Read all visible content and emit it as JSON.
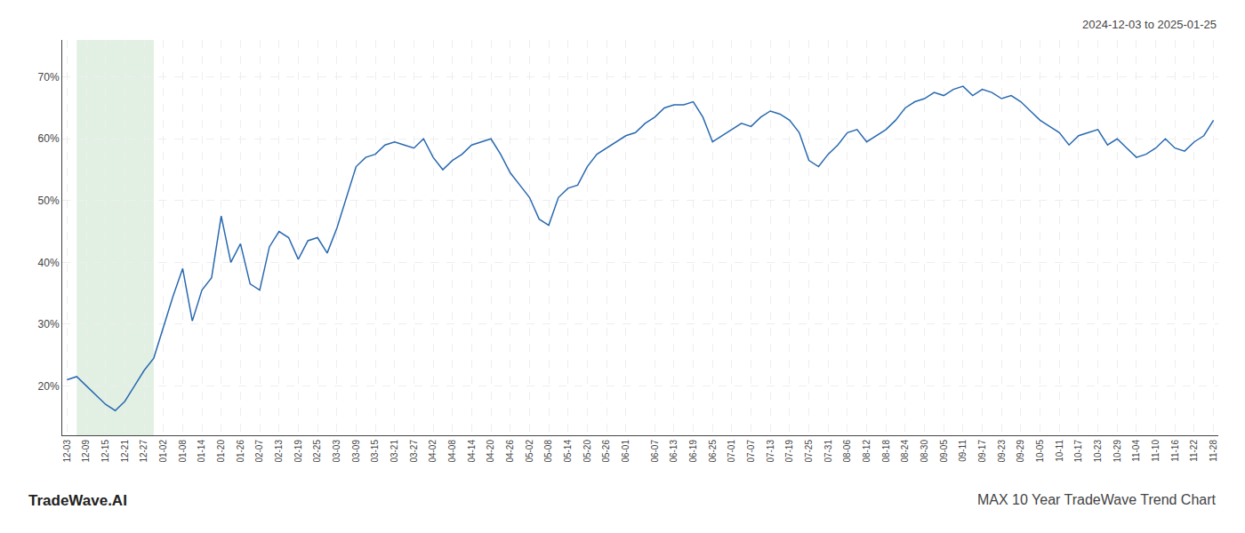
{
  "chart_data": {
    "type": "line",
    "annotations": [
      "2024-12-03 to 2025-01-25",
      "TradeWave.AI",
      "MAX 10 Year TradeWave Trend Chart"
    ],
    "categories": [
      "12-03",
      null,
      "12-09",
      null,
      "12-15",
      null,
      "12-21",
      null,
      "12-27",
      null,
      "01-02",
      null,
      "01-08",
      null,
      "01-14",
      null,
      "01-20",
      null,
      "01-26",
      null,
      "02-07",
      null,
      "02-13",
      null,
      "02-19",
      null,
      "02-25",
      null,
      "03-03",
      null,
      "03-09",
      null,
      "03-15",
      null,
      "03-21",
      null,
      "03-27",
      null,
      "04-02",
      null,
      "04-08",
      null,
      "04-14",
      null,
      "04-20",
      null,
      "04-26",
      null,
      "05-02",
      null,
      "05-08",
      null,
      "05-14",
      null,
      "05-20",
      null,
      "05-26",
      null,
      "06-01",
      null,
      null,
      "06-07",
      null,
      "06-13",
      null,
      "06-19",
      null,
      "06-25",
      null,
      "07-01",
      null,
      "07-07",
      null,
      "07-13",
      null,
      "07-19",
      null,
      "07-25",
      null,
      "07-31",
      null,
      "08-06",
      null,
      "08-12",
      null,
      "08-18",
      null,
      "08-24",
      null,
      "08-30",
      null,
      "09-05",
      null,
      "09-11",
      null,
      "09-17",
      null,
      "09-23",
      null,
      "09-29",
      null,
      "10-05",
      null,
      "10-11",
      null,
      "10-17",
      null,
      "10-23",
      null,
      "10-29",
      null,
      "11-04",
      null,
      "11-10",
      null,
      "11-16",
      null,
      "11-22",
      null,
      "11-28"
    ],
    "values": [
      21.0,
      21.5,
      20.0,
      18.5,
      17.0,
      16.0,
      17.5,
      20.0,
      22.5,
      24.5,
      29.5,
      34.5,
      39.0,
      30.5,
      35.5,
      37.5,
      47.5,
      40.0,
      43.0,
      36.5,
      35.5,
      42.5,
      45.0,
      44.0,
      40.5,
      43.5,
      44.0,
      41.5,
      45.5,
      50.5,
      55.5,
      57.0,
      57.5,
      59.0,
      59.5,
      59.0,
      58.5,
      60.0,
      57.0,
      55.0,
      56.5,
      57.5,
      59.0,
      59.5,
      60.0,
      57.5,
      54.5,
      52.5,
      50.5,
      47.0,
      46.0,
      50.5,
      52.0,
      52.5,
      55.5,
      57.5,
      58.5,
      59.5,
      60.5,
      61.0,
      62.5,
      63.5,
      65.0,
      65.5,
      65.5,
      66.0,
      63.5,
      59.5,
      60.5,
      61.5,
      62.5,
      62.0,
      63.5,
      64.5,
      64.0,
      63.0,
      61.0,
      56.5,
      55.5,
      57.5,
      59.0,
      61.0,
      61.5,
      59.5,
      60.5,
      61.5,
      63.0,
      65.0,
      66.0,
      66.5,
      67.5,
      67.0,
      68.0,
      68.5,
      67.0,
      68.0,
      67.5,
      66.5,
      67.0,
      66.0,
      64.5,
      63.0,
      62.0,
      61.0,
      59.0,
      60.5,
      61.0,
      61.5,
      59.0,
      60.0,
      58.5,
      57.0,
      57.5,
      58.5,
      60.0,
      58.5,
      58.0,
      59.5,
      60.5,
      63.0
    ],
    "color": "#2969b0",
    "ylim": [
      12,
      76
    ],
    "yticks": [
      {
        "value": 20,
        "label": "20%"
      },
      {
        "value": 30,
        "label": "30%"
      },
      {
        "value": 40,
        "label": "40%"
      },
      {
        "value": 50,
        "label": "50%"
      },
      {
        "value": 60,
        "label": "60%"
      },
      {
        "value": 70,
        "label": "70%"
      }
    ],
    "grid": true,
    "shade": {
      "start": 1,
      "end": 9,
      "color": "#d6ead8"
    }
  }
}
